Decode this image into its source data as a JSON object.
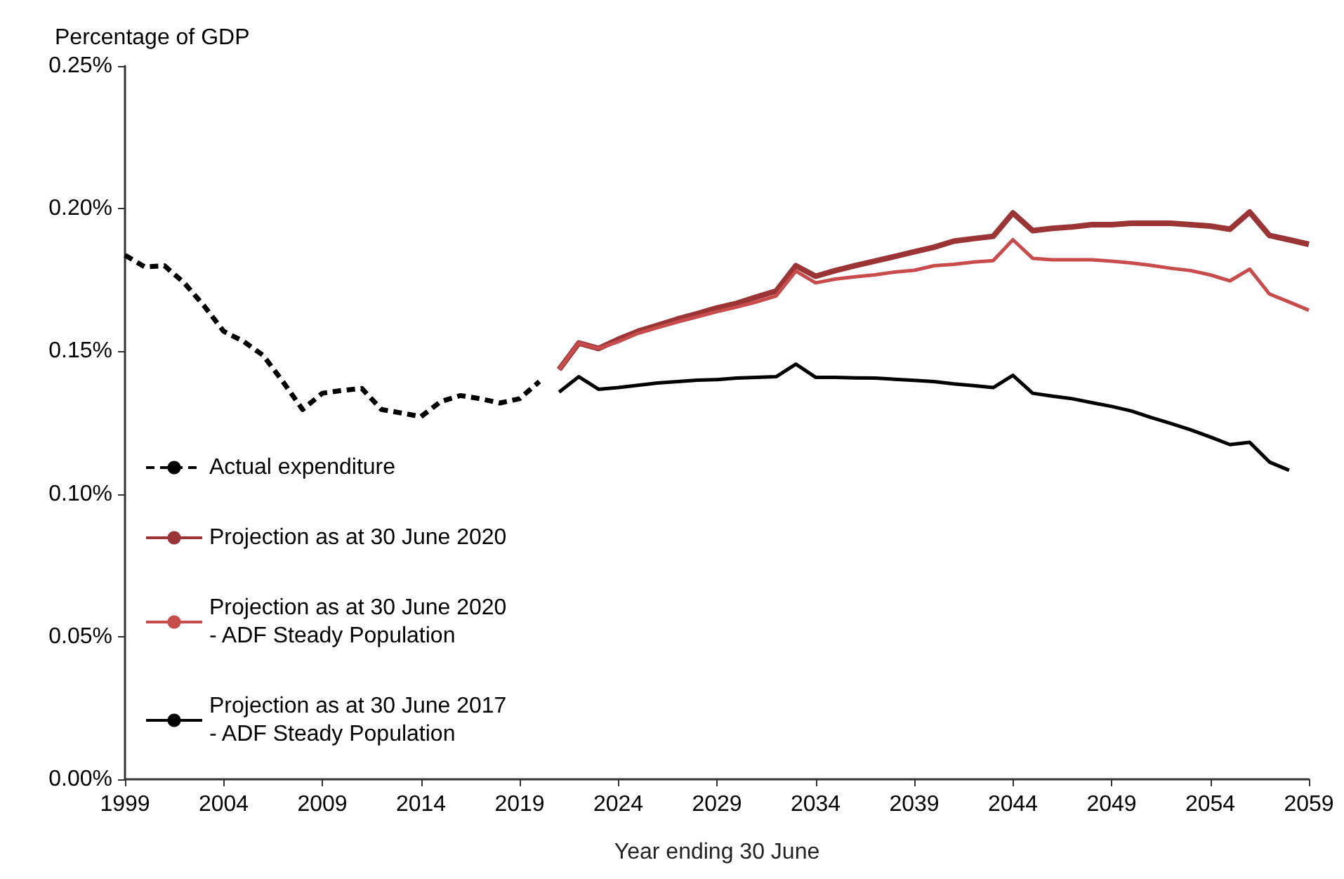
{
  "chart_data": {
    "type": "line",
    "ylabel": "Percentage of GDP",
    "xlabel": "Year ending 30 June",
    "xlim": [
      1999,
      2059
    ],
    "xticks": [
      1999,
      2004,
      2009,
      2014,
      2019,
      2024,
      2029,
      2034,
      2039,
      2044,
      2049,
      2054,
      2059
    ],
    "ylim": [
      0,
      0.25
    ],
    "yticks": [
      {
        "value": 0,
        "label": "0.00%"
      },
      {
        "value": 0.05,
        "label": "0.05%"
      },
      {
        "value": 0.1,
        "label": "0.10%"
      },
      {
        "value": 0.15,
        "label": "0.15%"
      },
      {
        "value": 0.2,
        "label": "0.20%"
      },
      {
        "value": 0.25,
        "label": "0.25%"
      }
    ],
    "grid": false,
    "legend": "left",
    "marker": "none",
    "series": [
      {
        "name": "Actual expenditure",
        "color": "#000000",
        "line_style": "dashed",
        "x": [
          1999,
          2000,
          2001,
          2002,
          2003,
          2004,
          2005,
          2006,
          2007,
          2008,
          2009,
          2010,
          2011,
          2012,
          2013,
          2014,
          2015,
          2016,
          2017,
          2018,
          2019,
          2020
        ],
        "values": [
          0.1837,
          0.1796,
          0.18,
          0.174,
          0.166,
          0.157,
          0.1535,
          0.1486,
          0.1394,
          0.1296,
          0.1353,
          0.1363,
          0.137,
          0.1296,
          0.1284,
          0.1271,
          0.1324,
          0.1345,
          0.1334,
          0.1319,
          0.1334,
          0.1394
        ]
      },
      {
        "name": "Projection as at 30 June 2020",
        "color": "#9b3535",
        "line_style": "solid",
        "x": [
          2021,
          2022,
          2023,
          2024,
          2025,
          2026,
          2027,
          2028,
          2029,
          2030,
          2031,
          2032,
          2033,
          2034,
          2035,
          2036,
          2037,
          2038,
          2039,
          2040,
          2041,
          2042,
          2043,
          2044,
          2045,
          2046,
          2047,
          2048,
          2049,
          2050,
          2051,
          2052,
          2053,
          2054,
          2055,
          2056,
          2057,
          2058,
          2059
        ],
        "values": [
          0.1436,
          0.1529,
          0.151,
          0.1542,
          0.157,
          0.1591,
          0.1613,
          0.1632,
          0.1652,
          0.1668,
          0.169,
          0.1711,
          0.18,
          0.1763,
          0.1783,
          0.18,
          0.1816,
          0.1832,
          0.1849,
          0.1865,
          0.1886,
          0.1895,
          0.1903,
          0.1985,
          0.1923,
          0.1931,
          0.1936,
          0.1944,
          0.1944,
          0.1949,
          0.1949,
          0.1949,
          0.1944,
          0.1939,
          0.1928,
          0.1988,
          0.1906,
          0.1891,
          0.1875
        ]
      },
      {
        "name": "Projection as at 30 June 2020 - ADF Steady Population",
        "color": "#c94c4c",
        "line_style": "solid",
        "x": [
          2021,
          2022,
          2023,
          2024,
          2025,
          2026,
          2027,
          2028,
          2029,
          2030,
          2031,
          2032,
          2033,
          2034,
          2035,
          2036,
          2037,
          2038,
          2039,
          2040,
          2041,
          2042,
          2043,
          2044,
          2045,
          2046,
          2047,
          2048,
          2049,
          2050,
          2051,
          2052,
          2053,
          2054,
          2055,
          2056,
          2057,
          2058,
          2059
        ],
        "values": [
          0.1436,
          0.1529,
          0.151,
          0.1534,
          0.1563,
          0.1583,
          0.1603,
          0.1621,
          0.1639,
          0.1655,
          0.1673,
          0.1694,
          0.1781,
          0.174,
          0.1753,
          0.1761,
          0.1768,
          0.1778,
          0.1784,
          0.18,
          0.1805,
          0.1813,
          0.1818,
          0.1891,
          0.1826,
          0.1821,
          0.1821,
          0.1821,
          0.1816,
          0.181,
          0.1801,
          0.1791,
          0.1783,
          0.1768,
          0.1747,
          0.1788,
          0.1701,
          0.1673,
          0.1644
        ]
      },
      {
        "name": "Projection as at 30 June 2017 - ADF Steady Population",
        "color": "#000000",
        "line_style": "solid",
        "x": [
          2021,
          2022,
          2023,
          2024,
          2025,
          2026,
          2027,
          2028,
          2029,
          2030,
          2031,
          2032,
          2033,
          2034,
          2035,
          2036,
          2037,
          2038,
          2039,
          2040,
          2041,
          2042,
          2043,
          2044,
          2045,
          2046,
          2047,
          2048,
          2049,
          2050,
          2051,
          2052,
          2053,
          2054,
          2055,
          2056,
          2057,
          2058
        ],
        "values": [
          0.1357,
          0.1411,
          0.1367,
          0.1373,
          0.1381,
          0.1389,
          0.1394,
          0.1399,
          0.1401,
          0.1406,
          0.1409,
          0.1411,
          0.1455,
          0.1409,
          0.1409,
          0.1407,
          0.1406,
          0.1402,
          0.1398,
          0.1394,
          0.1386,
          0.138,
          0.1373,
          0.1416,
          0.1353,
          0.1343,
          0.1334,
          0.132,
          0.1307,
          0.1291,
          0.1268,
          0.1247,
          0.1225,
          0.12,
          0.1173,
          0.1181,
          0.1112,
          0.1083
        ]
      }
    ]
  }
}
